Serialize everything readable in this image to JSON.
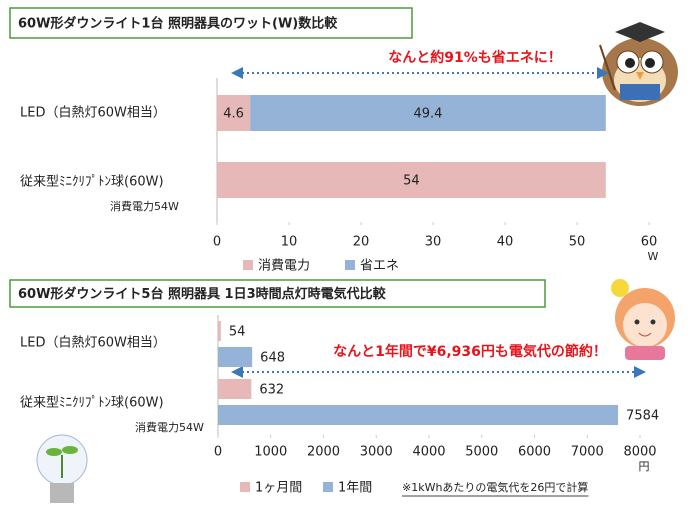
{
  "chart_data": [
    {
      "type": "bar",
      "stacked": true,
      "title": "60W形ダウンライト1台 照明器具のワット(W)数比較",
      "annotation": "なんと約91%も省エネに！",
      "categories": [
        "LED（白熱灯60W相当）",
        "従来型ﾐﾆｸﾘﾌﾟﾄﾝ球(60W)"
      ],
      "category_note": "消費電力54W",
      "series": [
        {
          "name": "消費電力",
          "color": "#e6b9b8",
          "values": [
            4.6,
            54
          ]
        },
        {
          "name": "省エネ",
          "color": "#95b3d7",
          "values": [
            49.4,
            null
          ]
        }
      ],
      "xlim": [
        0,
        60
      ],
      "xticks": [
        0,
        10,
        20,
        30,
        40,
        50,
        60
      ],
      "x_unit": "W",
      "grid": false
    },
    {
      "type": "bar",
      "stacked": false,
      "title": "60W形ダウンライト5台 照明器具 1日3時間点灯時電気代比較",
      "annotation": "なんと1年間で¥6,936円も電気代の節約！",
      "categories": [
        "LED（白熱灯60W相当）",
        "従来型ﾐﾆｸﾘﾌﾟﾄﾝ球(60W)"
      ],
      "category_note": "消費電力54W",
      "series": [
        {
          "name": "1ヶ月間",
          "color": "#e6b9b8",
          "values": [
            54,
            632
          ]
        },
        {
          "name": "1年間",
          "color": "#95b3d7",
          "values": [
            648,
            7584
          ]
        }
      ],
      "xlim": [
        0,
        8000
      ],
      "xticks": [
        0,
        1000,
        2000,
        3000,
        4000,
        5000,
        6000,
        7000,
        8000
      ],
      "x_unit": "円",
      "footnote": "※1kWhあたりの電気代を26円で計算",
      "grid": false
    }
  ]
}
